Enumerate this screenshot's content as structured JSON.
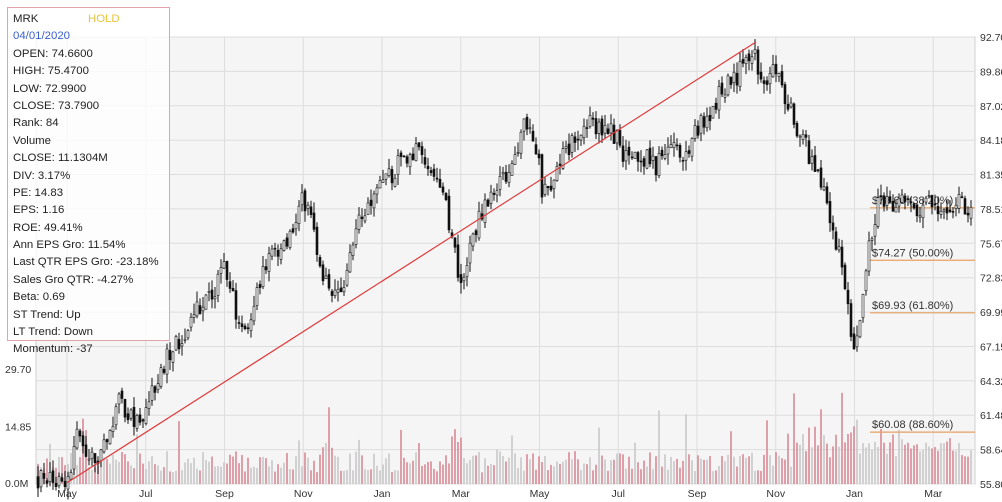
{
  "info": {
    "ticker": "MRK",
    "rating": "HOLD",
    "date": "04/01/2020",
    "open": "OPEN: 74.6600",
    "high": "HIGH: 75.4700",
    "low": "LOW: 72.9900",
    "close": "CLOSE: 73.7900",
    "rank": "Rank: 84",
    "volume_label": "Volume",
    "volume_close": "CLOSE: 11.1304M",
    "div": "DIV: 3.17%",
    "pe": "PE: 14.83",
    "eps": "EPS: 1.16",
    "roe": "ROE: 49.41%",
    "ann_eps": "Ann EPS Gro: 11.54%",
    "last_qtr_eps": "Last QTR EPS Gro: -23.18%",
    "sales_gro": "Sales Gro QTR: -4.27%",
    "beta": "Beta: 0.69",
    "st_trend": "ST Trend: Up",
    "lt_trend": "LT Trend: Down",
    "momentum": "Momentum: -37"
  },
  "colors": {
    "candle": "#111111",
    "trendline": "#e03a3a",
    "fib": "#e8a060",
    "volume_up": "#d98a96",
    "volume_down": "#c8c8c8",
    "grid": "#dddddd",
    "plot_bg": "#f5f5f5"
  },
  "chart_data": {
    "type": "candlestick",
    "title": "",
    "price_axis": {
      "position": "right",
      "ticks": [
        "92.70",
        "89.86",
        "87.02",
        "84.18",
        "81.35",
        "78.51",
        "75.67",
        "72.83",
        "69.99",
        "67.15",
        "64.32",
        "61.48",
        "58.64",
        "55.80"
      ],
      "range": [
        55.8,
        92.7
      ]
    },
    "volume_axis": {
      "position": "left",
      "ticks": [
        "29.70",
        "14.85",
        "0.0M"
      ],
      "range": [
        0,
        29.7
      ],
      "unit": "M"
    },
    "x_axis": {
      "tick_labels": [
        "May",
        "Jul",
        "Sep",
        "Nov",
        "Jan",
        "Mar",
        "May",
        "Jul",
        "Sep",
        "Nov",
        "Jan",
        "Mar"
      ]
    },
    "grid": true,
    "price_anchors": [
      {
        "m": 0.0,
        "p": 56.3
      },
      {
        "m": 0.3,
        "p": 60.0
      },
      {
        "m": 0.6,
        "p": 57.5
      },
      {
        "m": 1.0,
        "p": 59.0
      },
      {
        "m": 1.3,
        "p": 62.6
      },
      {
        "m": 1.6,
        "p": 61.0
      },
      {
        "m": 2.0,
        "p": 62.0
      },
      {
        "m": 2.3,
        "p": 64.0
      },
      {
        "m": 2.6,
        "p": 66.7
      },
      {
        "m": 3.0,
        "p": 68.0
      },
      {
        "m": 3.3,
        "p": 70.5
      },
      {
        "m": 3.6,
        "p": 71.0
      },
      {
        "m": 4.0,
        "p": 73.5
      },
      {
        "m": 4.3,
        "p": 70.0
      },
      {
        "m": 4.5,
        "p": 68.0
      },
      {
        "m": 4.7,
        "p": 70.5
      },
      {
        "m": 5.0,
        "p": 74.0
      },
      {
        "m": 5.3,
        "p": 74.5
      },
      {
        "m": 5.6,
        "p": 76.0
      },
      {
        "m": 6.0,
        "p": 79.5
      },
      {
        "m": 6.2,
        "p": 78.0
      },
      {
        "m": 6.4,
        "p": 74.0
      },
      {
        "m": 6.6,
        "p": 72.0
      },
      {
        "m": 6.8,
        "p": 71.5
      },
      {
        "m": 7.0,
        "p": 72.5
      },
      {
        "m": 7.3,
        "p": 76.0
      },
      {
        "m": 7.6,
        "p": 79.0
      },
      {
        "m": 8.0,
        "p": 80.5
      },
      {
        "m": 8.3,
        "p": 81.5
      },
      {
        "m": 8.6,
        "p": 83.0
      },
      {
        "m": 9.0,
        "p": 83.5
      },
      {
        "m": 9.3,
        "p": 82.0
      },
      {
        "m": 9.6,
        "p": 79.0
      },
      {
        "m": 9.9,
        "p": 74.0
      },
      {
        "m": 10.05,
        "p": 72.5
      },
      {
        "m": 10.25,
        "p": 76.0
      },
      {
        "m": 10.6,
        "p": 79.0
      },
      {
        "m": 11.0,
        "p": 80.5
      },
      {
        "m": 11.3,
        "p": 82.5
      },
      {
        "m": 11.6,
        "p": 85.5
      },
      {
        "m": 11.9,
        "p": 84.0
      },
      {
        "m": 12.1,
        "p": 79.5
      },
      {
        "m": 12.4,
        "p": 81.0
      },
      {
        "m": 12.7,
        "p": 83.5
      },
      {
        "m": 13.0,
        "p": 84.5
      },
      {
        "m": 13.3,
        "p": 85.5
      },
      {
        "m": 13.7,
        "p": 85.5
      },
      {
        "m": 14.0,
        "p": 84.0
      },
      {
        "m": 14.3,
        "p": 82.0
      },
      {
        "m": 14.6,
        "p": 83.0
      },
      {
        "m": 15.0,
        "p": 82.0
      },
      {
        "m": 15.3,
        "p": 84.5
      },
      {
        "m": 15.6,
        "p": 82.5
      },
      {
        "m": 16.0,
        "p": 85.0
      },
      {
        "m": 16.3,
        "p": 86.5
      },
      {
        "m": 16.6,
        "p": 88.0
      },
      {
        "m": 17.0,
        "p": 89.5
      },
      {
        "m": 17.2,
        "p": 90.5
      },
      {
        "m": 17.45,
        "p": 91.0
      },
      {
        "m": 17.7,
        "p": 89.5
      },
      {
        "m": 18.0,
        "p": 90.0
      },
      {
        "m": 18.3,
        "p": 87.0
      },
      {
        "m": 18.6,
        "p": 85.0
      },
      {
        "m": 19.0,
        "p": 81.5
      },
      {
        "m": 19.3,
        "p": 79.0
      },
      {
        "m": 19.6,
        "p": 75.0
      },
      {
        "m": 19.8,
        "p": 71.0
      },
      {
        "m": 20.0,
        "p": 67.0
      },
      {
        "m": 20.2,
        "p": 71.0
      },
      {
        "m": 20.4,
        "p": 76.0
      },
      {
        "m": 20.6,
        "p": 78.8
      }
    ],
    "trendline": [
      {
        "m": 0.0,
        "p": 55.9
      },
      {
        "m": 17.5,
        "p": 92.3
      }
    ],
    "fib_levels": [
      {
        "label": "$78.60 (38.20%)",
        "value": 78.6
      },
      {
        "label": "$74.27 (50.00%)",
        "value": 74.27
      },
      {
        "label": "$69.93 (61.80%)",
        "value": 69.93
      },
      {
        "label": "$60.08 (88.60%)",
        "value": 60.08
      }
    ]
  }
}
